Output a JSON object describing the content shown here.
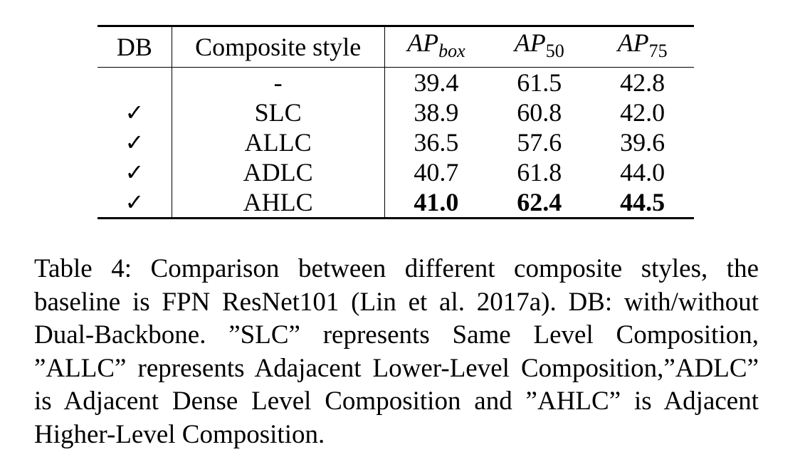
{
  "table": {
    "headers": {
      "db": "DB",
      "style": "Composite style",
      "m1_base": "AP",
      "m1_sub": "box",
      "m2_base": "AP",
      "m2_sub": "50",
      "m3_base": "AP",
      "m3_sub": "75"
    },
    "rows": [
      {
        "db": "",
        "style": "-",
        "ap_box": "39.4",
        "ap50": "61.5",
        "ap75": "42.8"
      },
      {
        "db": "✓",
        "style": "SLC",
        "ap_box": "38.9",
        "ap50": "60.8",
        "ap75": "42.0"
      },
      {
        "db": "✓",
        "style": "ALLC",
        "ap_box": "36.5",
        "ap50": "57.6",
        "ap75": "39.6"
      },
      {
        "db": "✓",
        "style": "ADLC",
        "ap_box": "40.7",
        "ap50": "61.8",
        "ap75": "44.0"
      },
      {
        "db": "✓",
        "style": "AHLC",
        "ap_box": "41.0",
        "ap50": "62.4",
        "ap75": "44.5"
      }
    ]
  },
  "caption": "Table 4: Comparison between different composite styles, the baseline is FPN ResNet101 (Lin et al. 2017a). DB: with/without Dual-Backbone. ”SLC” represents Same Level Composition, ”ALLC” represents Adajacent Lower-Level Composition,”ADLC” is Adjacent Dense Level Composition and ”AHLC” is Adjacent Higher-Level Composition."
}
